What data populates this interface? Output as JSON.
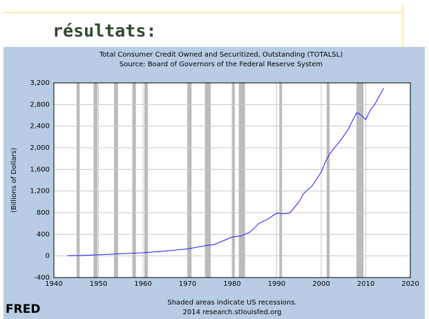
{
  "header": {
    "title": "résultats:"
  },
  "chart_data": {
    "type": "line",
    "title": "Total Consumer Credit Owned and Securitized, Outstanding (TOTALSL)",
    "subtitle": "Source: Board of Governors of the Federal Reserve System",
    "y_label": "(Billions of Dollars)",
    "x": [
      1943,
      1946,
      1950,
      1955,
      1960,
      1965,
      1970,
      1972,
      1974,
      1976,
      1978,
      1980,
      1982,
      1984,
      1986,
      1988,
      1990,
      1992,
      1993,
      1995,
      1996,
      1998,
      2000,
      2001,
      2002,
      2004,
      2006,
      2007,
      2008,
      2009,
      2010,
      2011,
      2012,
      2013,
      2014
    ],
    "values": [
      5,
      8,
      22,
      40,
      60,
      90,
      130,
      160,
      190,
      210,
      280,
      350,
      370,
      440,
      600,
      680,
      790,
      780,
      800,
      1000,
      1150,
      1300,
      1550,
      1750,
      1900,
      2100,
      2330,
      2500,
      2650,
      2600,
      2520,
      2700,
      2800,
      2950,
      3100
    ],
    "color": "#1a1aff",
    "recessions": [
      [
        1945.1,
        1945.8
      ],
      [
        1948.9,
        1949.8
      ],
      [
        1953.5,
        1954.4
      ],
      [
        1957.6,
        1958.4
      ],
      [
        1960.3,
        1961.1
      ],
      [
        1969.9,
        1970.9
      ],
      [
        1973.9,
        1975.2
      ],
      [
        1980.0,
        1980.6
      ],
      [
        1981.5,
        1982.9
      ],
      [
        1990.6,
        1991.2
      ],
      [
        2001.2,
        2001.9
      ],
      [
        2007.9,
        2009.5
      ]
    ],
    "recession_color": "#bbbbbb",
    "xlim": [
      1940,
      2020
    ],
    "xticks": [
      1940,
      1950,
      1960,
      1970,
      1980,
      1990,
      2000,
      2010,
      2020
    ],
    "ylim": [
      -400,
      3200
    ],
    "yticks": [
      -400,
      0,
      400,
      800,
      {
        "value": 1200,
        "label": "1,200"
      },
      {
        "value": 1600,
        "label": "1,600"
      },
      {
        "value": 2000,
        "label": "2,000"
      },
      {
        "value": 2400,
        "label": "2,400"
      },
      {
        "value": 2800,
        "label": "2,800"
      },
      {
        "value": 3200,
        "label": "3,200"
      }
    ],
    "grid": true,
    "note": "Shaded areas indicate US recessions.",
    "source": "2014 research.stlouisfed.org",
    "logo": "FRED"
  }
}
